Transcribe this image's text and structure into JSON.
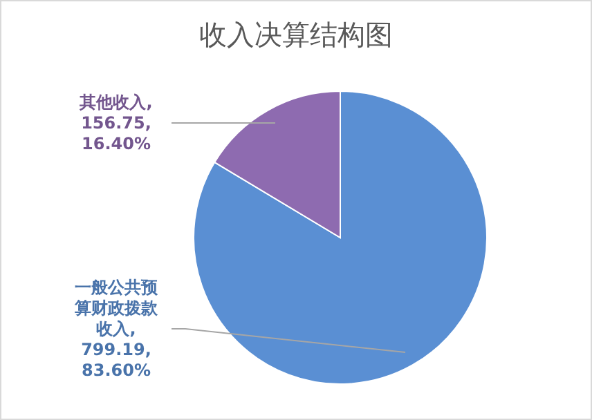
{
  "chart_data": {
    "type": "pie",
    "title": "收入决算结构图",
    "categories": [
      "一般公共预算财政拨款收入",
      "其他收入"
    ],
    "values": [
      799.19,
      156.75
    ],
    "colors": [
      "#5a8fd3",
      "#8e6bb0"
    ],
    "value_labels": [
      ", 799.19, 83.60%",
      ", 156.75, 16.40%"
    ],
    "legend": false
  }
}
